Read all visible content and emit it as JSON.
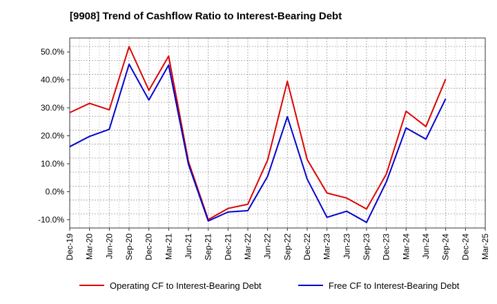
{
  "chart_data": {
    "type": "line",
    "title": "[9908]  Trend of Cashflow Ratio to Interest-Bearing Debt",
    "xlabel": "",
    "ylabel": "",
    "ylim": [
      -13,
      55
    ],
    "yticks": [
      -10,
      0,
      10,
      20,
      30,
      40,
      50
    ],
    "ytick_labels": [
      "-10.0%",
      "0.0%",
      "10.0%",
      "20.0%",
      "30.0%",
      "40.0%",
      "50.0%"
    ],
    "x_tick_labels": [
      "Dec-19",
      "Mar-20",
      "Jun-20",
      "Sep-20",
      "Dec-20",
      "Mar-21",
      "Jun-21",
      "Sep-21",
      "Dec-21",
      "Mar-22",
      "Jun-22",
      "Sep-22",
      "Dec-22",
      "Mar-23",
      "Jun-23",
      "Sep-23",
      "Dec-23",
      "Mar-24",
      "Jun-24",
      "Sep-24",
      "Dec-24",
      "Mar-25"
    ],
    "x": [
      "Dec-19",
      "Mar-20",
      "Jun-20",
      "Sep-20",
      "Dec-20",
      "Mar-21",
      "Jun-21",
      "Sep-21",
      "Dec-21",
      "Mar-22",
      "Jun-22",
      "Sep-22",
      "Dec-22",
      "Mar-23",
      "Jun-23",
      "Sep-23",
      "Dec-23",
      "Mar-24",
      "Jun-24",
      "Sep-24"
    ],
    "grid": true,
    "legend_position": "bottom",
    "series": [
      {
        "name": "Operating CF to Interest-Bearing Debt",
        "color": "#dd0000",
        "values": [
          28.3,
          31.6,
          29.3,
          51.9,
          36.3,
          48.5,
          10.8,
          -10.0,
          -6.0,
          -4.5,
          11.3,
          39.5,
          11.5,
          -0.5,
          -2.3,
          -6.2,
          6.3,
          28.8,
          23.3,
          40.3
        ]
      },
      {
        "name": "Free CF to Interest-Bearing Debt",
        "color": "#0000cc",
        "values": [
          16.1,
          19.8,
          22.3,
          45.6,
          32.8,
          45.3,
          9.8,
          -10.5,
          -7.3,
          -6.8,
          5.5,
          26.8,
          4.5,
          -9.2,
          -7.0,
          -11.0,
          3.5,
          22.8,
          18.8,
          33.3
        ]
      }
    ]
  }
}
